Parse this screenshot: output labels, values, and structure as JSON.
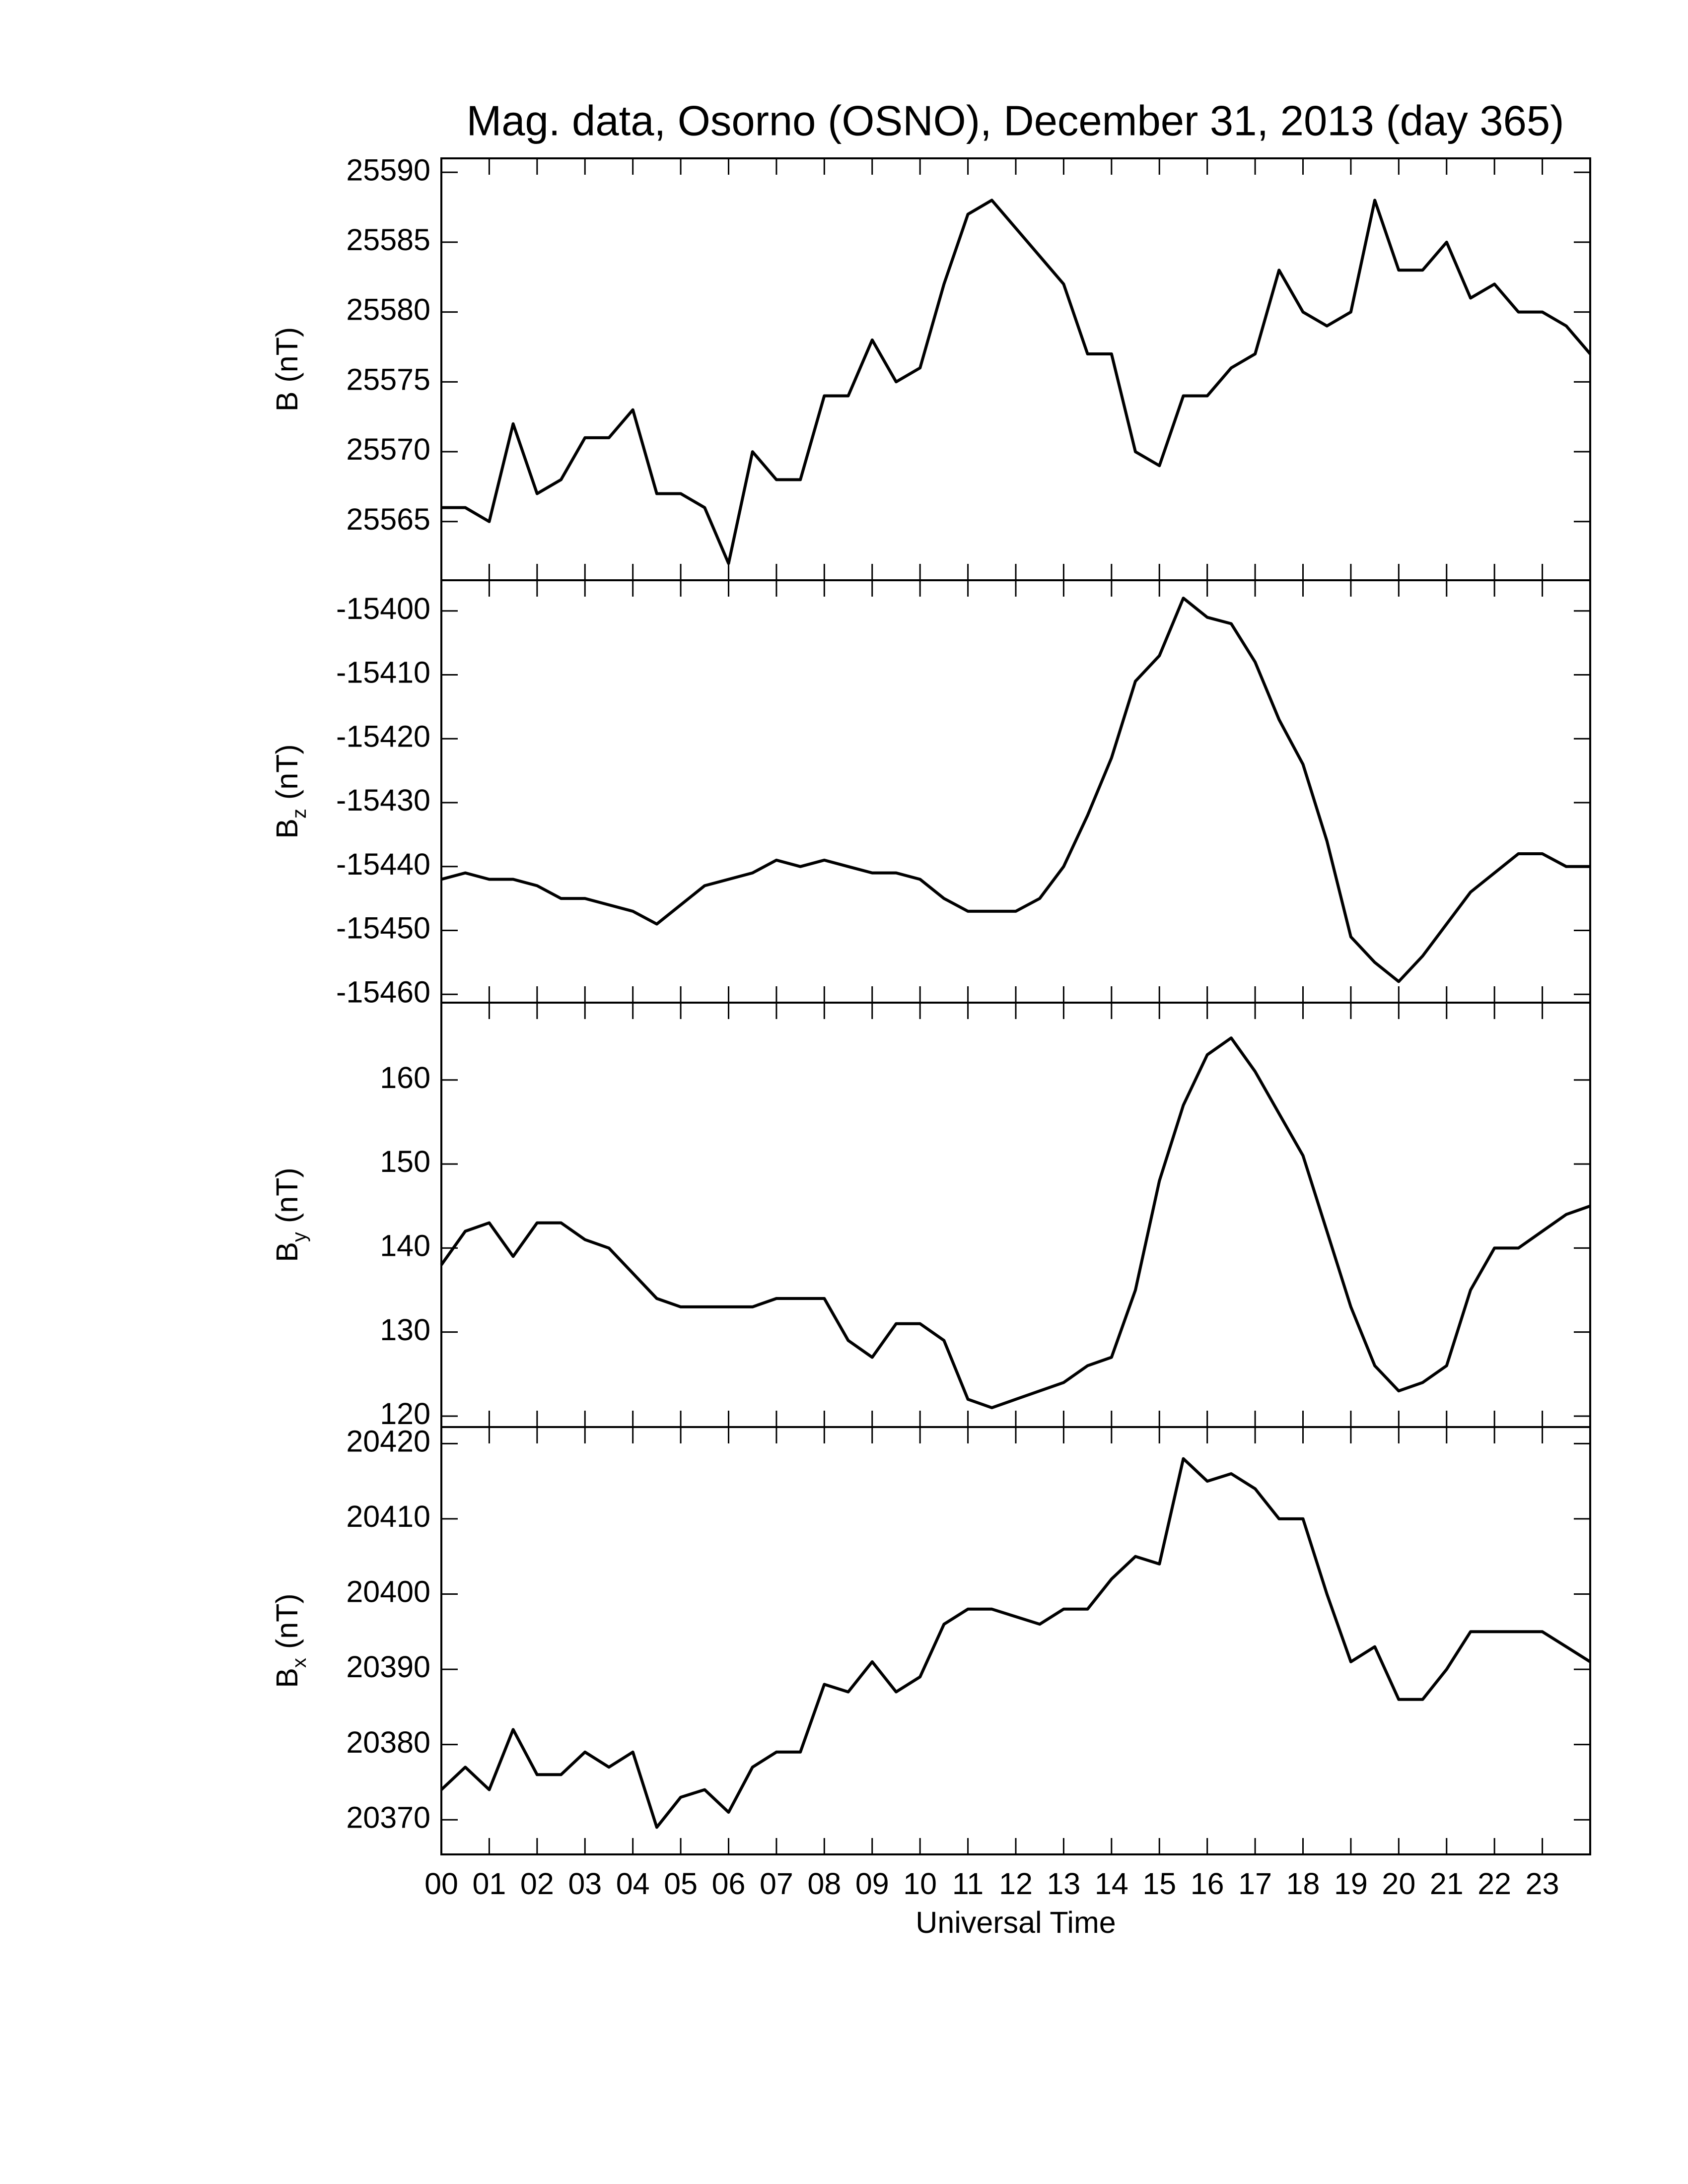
{
  "chart_data": [
    {
      "type": "line",
      "title": "Mag. data, Osorno (OSNO), December 31, 2013 (day 365)",
      "ylabel": {
        "symbol": "B",
        "unit": "(nT)"
      },
      "xlim": [
        0,
        24
      ],
      "ylim": [
        25560.8,
        25591
      ],
      "yticks": [
        25565,
        25570,
        25575,
        25580,
        25585,
        25590
      ],
      "series": [
        {
          "color": "#000000",
          "x": [
            0,
            0.5,
            1,
            1.5,
            2,
            2.5,
            3,
            3.5,
            4,
            4.5,
            5,
            5.5,
            6,
            6.5,
            7,
            7.5,
            8,
            8.5,
            9,
            9.5,
            10,
            10.5,
            11,
            11.5,
            12,
            12.5,
            13,
            13.5,
            14,
            14.5,
            15,
            15.5,
            16,
            16.5,
            17,
            17.5,
            18,
            18.5,
            19,
            19.5,
            20,
            20.5,
            21,
            21.5,
            22,
            22.5,
            23,
            23.5,
            24
          ],
          "values": [
            25566,
            25566,
            25565,
            25572,
            25567,
            25568,
            25571,
            25571,
            25573,
            25567,
            25567,
            25566,
            25562,
            25570,
            25568,
            25568,
            25574,
            25574,
            25578,
            25575,
            25576,
            25582,
            25587,
            25588,
            25586,
            25584,
            25582,
            25577,
            25577,
            25570,
            25569,
            25574,
            25574,
            25576,
            25577,
            25583,
            25580,
            25579,
            25580,
            25588,
            25583,
            25583,
            25585,
            25581,
            25582,
            25580,
            25580,
            25579,
            25577
          ]
        }
      ]
    },
    {
      "type": "line",
      "ylabel": {
        "symbol": "B",
        "sub": "z",
        "unit": "(nT)"
      },
      "xlim": [
        0,
        24
      ],
      "ylim": [
        -15461.3,
        -15395.2
      ],
      "yticks": [
        -15460,
        -15450,
        -15440,
        -15430,
        -15420,
        -15410,
        -15400
      ],
      "series": [
        {
          "color": "#000000",
          "x": [
            0,
            0.5,
            1,
            1.5,
            2,
            2.5,
            3,
            3.5,
            4,
            4.5,
            5,
            5.5,
            6,
            6.5,
            7,
            7.5,
            8,
            8.5,
            9,
            9.5,
            10,
            10.5,
            11,
            11.5,
            12,
            12.5,
            13,
            13.5,
            14,
            14.5,
            15,
            15.5,
            16,
            16.5,
            17,
            17.5,
            18,
            18.5,
            19,
            19.5,
            20,
            20.5,
            21,
            21.5,
            22,
            22.5,
            23,
            23.5,
            24
          ],
          "values": [
            -15442,
            -15441,
            -15442,
            -15442,
            -15443,
            -15445,
            -15445,
            -15446,
            -15447,
            -15449,
            -15446,
            -15443,
            -15442,
            -15441,
            -15439,
            -15440,
            -15439,
            -15440,
            -15441,
            -15441,
            -15442,
            -15445,
            -15447,
            -15447,
            -15447,
            -15445,
            -15440,
            -15432,
            -15423,
            -15411,
            -15407,
            -15398,
            -15401,
            -15402,
            -15408,
            -15417,
            -15424,
            -15436,
            -15451,
            -15455,
            -15458,
            -15454,
            -15449,
            -15444,
            -15441,
            -15438,
            -15438,
            -15440,
            -15440
          ]
        }
      ]
    },
    {
      "type": "line",
      "ylabel": {
        "symbol": "B",
        "sub": "y",
        "unit": "(nT)"
      },
      "xlim": [
        0,
        24
      ],
      "ylim": [
        118.7,
        169.2
      ],
      "yticks": [
        120,
        130,
        140,
        150,
        160
      ],
      "series": [
        {
          "color": "#000000",
          "x": [
            0,
            0.5,
            1,
            1.5,
            2,
            2.5,
            3,
            3.5,
            4,
            4.5,
            5,
            5.5,
            6,
            6.5,
            7,
            7.5,
            8,
            8.5,
            9,
            9.5,
            10,
            10.5,
            11,
            11.5,
            12,
            12.5,
            13,
            13.5,
            14,
            14.5,
            15,
            15.5,
            16,
            16.5,
            17,
            17.5,
            18,
            18.5,
            19,
            19.5,
            20,
            20.5,
            21,
            21.5,
            22,
            22.5,
            23,
            23.5,
            24
          ],
          "values": [
            138,
            142,
            143,
            139,
            143,
            143,
            141,
            140,
            137,
            134,
            133,
            133,
            133,
            133,
            134,
            134,
            134,
            129,
            127,
            131,
            131,
            129,
            122,
            121,
            122,
            123,
            124,
            126,
            127,
            135,
            148,
            157,
            163,
            165,
            161,
            156,
            151,
            142,
            133,
            126,
            123,
            124,
            126,
            135,
            140,
            140,
            142,
            144,
            145
          ]
        }
      ]
    },
    {
      "type": "line",
      "ylabel": {
        "symbol": "B",
        "sub": "x",
        "unit": "(nT)"
      },
      "xlabel": "Universal Time",
      "xlim": [
        0,
        24
      ],
      "ylim": [
        20365.4,
        20422.2
      ],
      "yticks": [
        20370,
        20380,
        20390,
        20400,
        20410,
        20420
      ],
      "xticks": [
        {
          "value": 0,
          "label": "00"
        },
        {
          "value": 1,
          "label": "01"
        },
        {
          "value": 2,
          "label": "02"
        },
        {
          "value": 3,
          "label": "03"
        },
        {
          "value": 4,
          "label": "04"
        },
        {
          "value": 5,
          "label": "05"
        },
        {
          "value": 6,
          "label": "06"
        },
        {
          "value": 7,
          "label": "07"
        },
        {
          "value": 8,
          "label": "08"
        },
        {
          "value": 9,
          "label": "09"
        },
        {
          "value": 10,
          "label": "10"
        },
        {
          "value": 11,
          "label": "11"
        },
        {
          "value": 12,
          "label": "12"
        },
        {
          "value": 13,
          "label": "13"
        },
        {
          "value": 14,
          "label": "14"
        },
        {
          "value": 15,
          "label": "15"
        },
        {
          "value": 16,
          "label": "16"
        },
        {
          "value": 17,
          "label": "17"
        },
        {
          "value": 18,
          "label": "18"
        },
        {
          "value": 19,
          "label": "19"
        },
        {
          "value": 20,
          "label": "20"
        },
        {
          "value": 21,
          "label": "21"
        },
        {
          "value": 22,
          "label": "22"
        },
        {
          "value": 23,
          "label": "23"
        }
      ],
      "series": [
        {
          "color": "#000000",
          "x": [
            0,
            0.5,
            1,
            1.5,
            2,
            2.5,
            3,
            3.5,
            4,
            4.5,
            5,
            5.5,
            6,
            6.5,
            7,
            7.5,
            8,
            8.5,
            9,
            9.5,
            10,
            10.5,
            11,
            11.5,
            12,
            12.5,
            13,
            13.5,
            14,
            14.5,
            15,
            15.5,
            16,
            16.5,
            17,
            17.5,
            18,
            18.5,
            19,
            19.5,
            20,
            20.5,
            21,
            21.5,
            22,
            22.5,
            23,
            23.5,
            24
          ],
          "values": [
            20374,
            20377,
            20374,
            20382,
            20376,
            20376,
            20379,
            20377,
            20379,
            20369,
            20373,
            20374,
            20371,
            20377,
            20379,
            20379,
            20388,
            20387,
            20391,
            20387,
            20389,
            20396,
            20398,
            20398,
            20397,
            20396,
            20398,
            20398,
            20402,
            20405,
            20404,
            20418,
            20415,
            20416,
            20414,
            20410,
            20410,
            20400,
            20391,
            20393,
            20386,
            20386,
            20390,
            20395,
            20395,
            20395,
            20395,
            20393,
            20391
          ]
        }
      ]
    }
  ]
}
